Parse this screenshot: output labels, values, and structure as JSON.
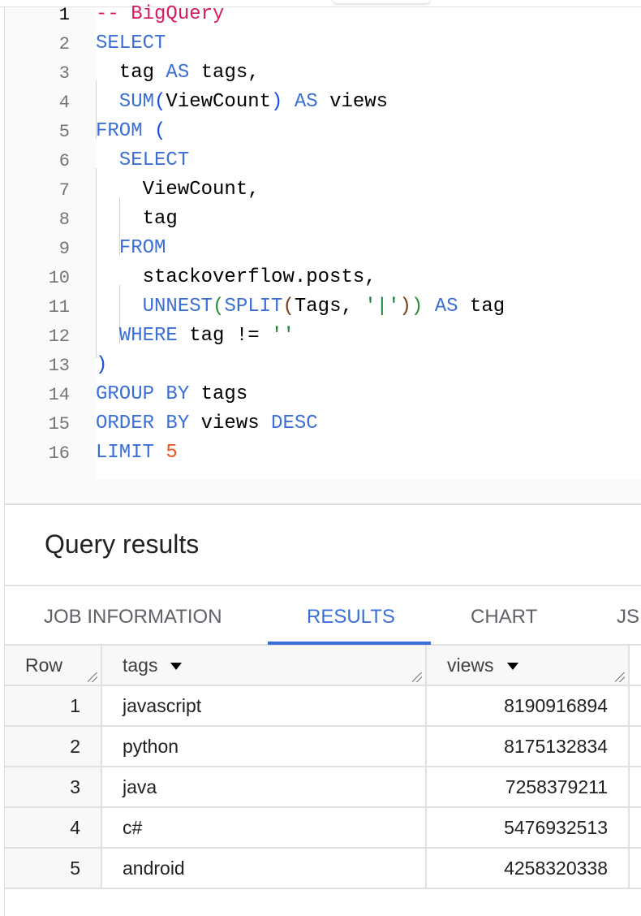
{
  "editor": {
    "active_line": 1,
    "lines": [
      [
        {
          "t": "-- BigQuery",
          "c": "cm"
        }
      ],
      [
        {
          "t": "SELECT",
          "c": "kw"
        }
      ],
      [
        {
          "t": "  tag ",
          "c": "tx"
        },
        {
          "t": "AS",
          "c": "kw"
        },
        {
          "t": " tags,",
          "c": "tx"
        }
      ],
      [
        {
          "t": "  SUM",
          "c": "kw"
        },
        {
          "t": "(",
          "c": "p1"
        },
        {
          "t": "ViewCount",
          "c": "tx"
        },
        {
          "t": ")",
          "c": "p1"
        },
        {
          "t": " AS",
          "c": "kw"
        },
        {
          "t": " views",
          "c": "tx"
        }
      ],
      [
        {
          "t": "FROM ",
          "c": "kw"
        },
        {
          "t": "(",
          "c": "p1"
        }
      ],
      [
        {
          "t": "  SELECT",
          "c": "kw"
        }
      ],
      [
        {
          "t": "    ViewCount,",
          "c": "tx"
        }
      ],
      [
        {
          "t": "    tag",
          "c": "tx"
        }
      ],
      [
        {
          "t": "  FROM",
          "c": "kw"
        }
      ],
      [
        {
          "t": "    stackoverflow.posts,",
          "c": "tx"
        }
      ],
      [
        {
          "t": "    UNNEST",
          "c": "kw"
        },
        {
          "t": "(",
          "c": "p2"
        },
        {
          "t": "SPLIT",
          "c": "kw"
        },
        {
          "t": "(",
          "c": "p3"
        },
        {
          "t": "Tags, ",
          "c": "tx"
        },
        {
          "t": "'|'",
          "c": "st"
        },
        {
          "t": ")",
          "c": "p3"
        },
        {
          "t": ")",
          "c": "p2"
        },
        {
          "t": " AS",
          "c": "kw"
        },
        {
          "t": " tag",
          "c": "tx"
        }
      ],
      [
        {
          "t": "  WHERE",
          "c": "kw"
        },
        {
          "t": " tag != ",
          "c": "tx"
        },
        {
          "t": "''",
          "c": "st"
        }
      ],
      [
        {
          "t": ")",
          "c": "p1"
        }
      ],
      [
        {
          "t": "GROUP BY",
          "c": "kw"
        },
        {
          "t": " tags",
          "c": "tx"
        }
      ],
      [
        {
          "t": "ORDER BY",
          "c": "kw"
        },
        {
          "t": " views ",
          "c": "tx"
        },
        {
          "t": "DESC",
          "c": "kw"
        }
      ],
      [
        {
          "t": "LIMIT ",
          "c": "kw"
        },
        {
          "t": "5",
          "c": "nm"
        }
      ]
    ]
  },
  "results": {
    "title": "Query results",
    "tabs": [
      {
        "label": "JOB INFORMATION",
        "active": false
      },
      {
        "label": "RESULTS",
        "active": true
      },
      {
        "label": "CHART",
        "active": false
      },
      {
        "label": "JS",
        "active": false
      }
    ],
    "columns": [
      "Row",
      "tags",
      "views"
    ],
    "rows": [
      [
        "1",
        "javascript",
        "8190916894"
      ],
      [
        "2",
        "python",
        "8175132834"
      ],
      [
        "3",
        "java",
        "7258379211"
      ],
      [
        "4",
        "c#",
        "5476932513"
      ],
      [
        "5",
        "android",
        "4258320338"
      ]
    ]
  },
  "colors": {
    "keyword": "#3b6fd8",
    "comment": "#d81b60",
    "string": "#188038",
    "number": "#f4511e",
    "accent": "#3b6fd8"
  }
}
